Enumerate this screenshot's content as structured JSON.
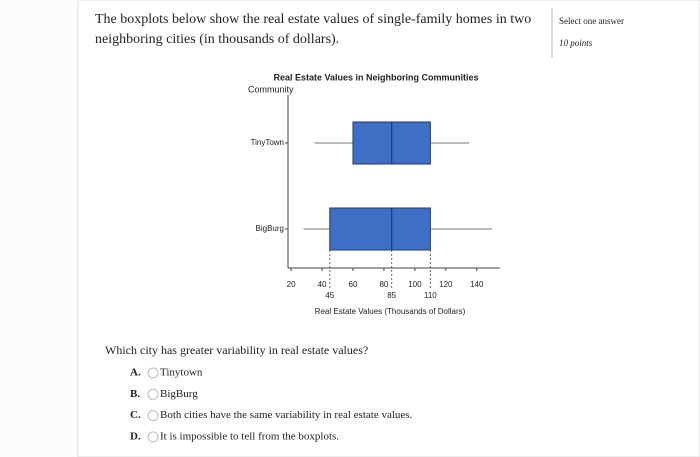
{
  "question_intro": "The boxplots below show the real estate values of single-family homes in two neighboring cities (in thousands of dollars).",
  "side_panel": {
    "instruction": "Select one answer",
    "points": "10 points"
  },
  "chart_data": {
    "type": "boxplot",
    "title": "Real Estate Values in Neighboring Communities",
    "y_label": "Community",
    "x_label": "Real Estate Values (Thousands of Dollars)",
    "categories": [
      "TinyTown",
      "BigBurg"
    ],
    "boxes": [
      {
        "min": 35,
        "q1": 60,
        "median": 85,
        "q3": 110,
        "max": 135
      },
      {
        "min": 28,
        "q1": 45,
        "median": 85,
        "q3": 110,
        "max": 150
      }
    ],
    "color": "#3e6fc4",
    "xlim": [
      18,
      155
    ],
    "xticks": [
      20,
      40,
      60,
      80,
      100,
      120,
      140
    ],
    "xticks_detail": [
      45,
      85,
      110
    ]
  },
  "question": "Which city has greater variability in real estate values?",
  "options": [
    {
      "letter": "A.",
      "text": "Tinytown"
    },
    {
      "letter": "B.",
      "text": "BigBurg"
    },
    {
      "letter": "C.",
      "text": "Both cities have the same variability in real estate values."
    },
    {
      "letter": "D.",
      "text": "It is impossible to tell from the boxplots."
    }
  ]
}
